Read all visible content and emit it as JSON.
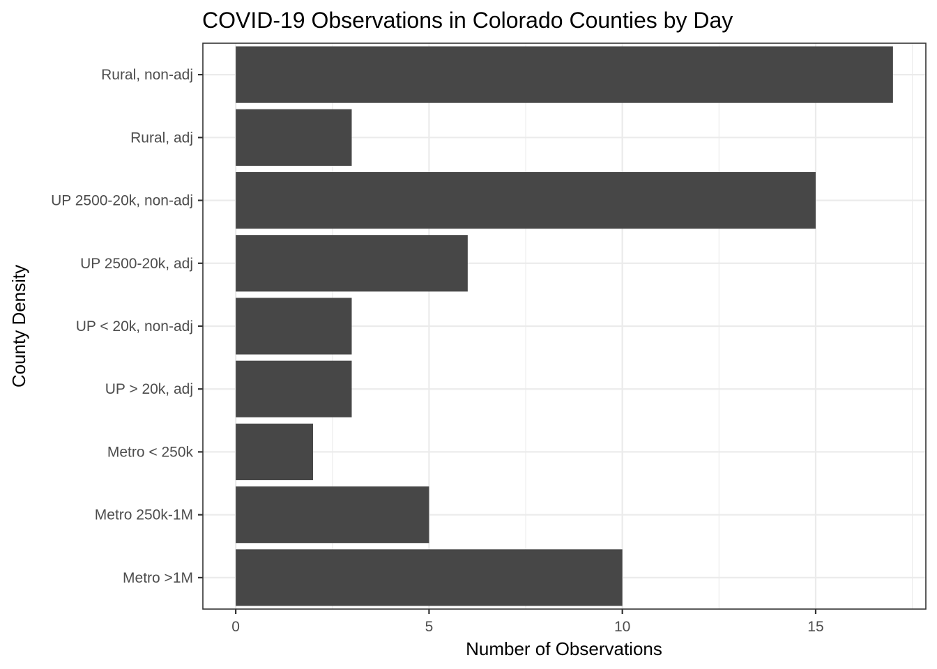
{
  "chart_data": {
    "type": "bar",
    "orientation": "horizontal",
    "title": "COVID-19 Observations in Colorado Counties by Day",
    "xlabel": "Number of Observations",
    "ylabel": "County Density",
    "categories": [
      "Rural, non-adj",
      "Rural, adj",
      "UP 2500-20k, non-adj",
      "UP 2500-20k, adj",
      "UP < 20k, non-adj",
      "UP > 20k, adj",
      "Metro < 250k",
      "Metro 250k-1M",
      "Metro >1M"
    ],
    "values": [
      17,
      3,
      15,
      6,
      3,
      3,
      2,
      5,
      10
    ],
    "xlim": [
      -0.85,
      17.85
    ],
    "xticks": [
      0,
      5,
      10,
      15
    ],
    "xtick_labels": [
      "0",
      "5",
      "10",
      "15"
    ],
    "grid": true,
    "bar_color": "#474747"
  }
}
